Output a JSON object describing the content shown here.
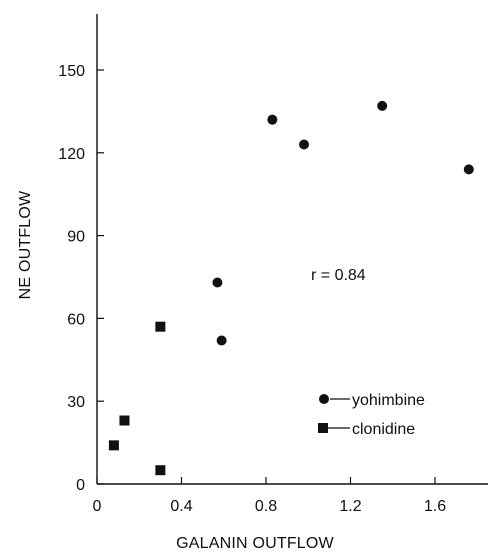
{
  "chart_data": {
    "type": "scatter",
    "title": "",
    "xlabel": "GALANIN OUTFLOW",
    "ylabel": "NE OUTFLOW",
    "xlim": [
      0,
      1.8
    ],
    "ylim": [
      0,
      160
    ],
    "x_ticks": [
      0,
      0.4,
      0.8,
      1.2,
      1.6
    ],
    "x_tick_labels": [
      "0",
      "0.4",
      "0.8",
      "1.2",
      "1.6"
    ],
    "y_ticks": [
      0,
      30,
      60,
      90,
      120,
      150
    ],
    "y_tick_labels": [
      "0",
      "30",
      "60",
      "90",
      "120",
      "150"
    ],
    "annotation": "r = 0.84",
    "legend_position": "bottom-right",
    "grid": false,
    "series": [
      {
        "name": "yohimbine",
        "marker": "circle",
        "points": [
          {
            "x": 0.57,
            "y": 73
          },
          {
            "x": 0.59,
            "y": 52
          },
          {
            "x": 0.83,
            "y": 132
          },
          {
            "x": 0.98,
            "y": 123
          },
          {
            "x": 1.35,
            "y": 137
          },
          {
            "x": 1.76,
            "y": 114
          }
        ]
      },
      {
        "name": "clonidine",
        "marker": "square",
        "points": [
          {
            "x": 0.08,
            "y": 14
          },
          {
            "x": 0.13,
            "y": 23
          },
          {
            "x": 0.3,
            "y": 57
          },
          {
            "x": 0.3,
            "y": 5
          }
        ]
      }
    ]
  }
}
